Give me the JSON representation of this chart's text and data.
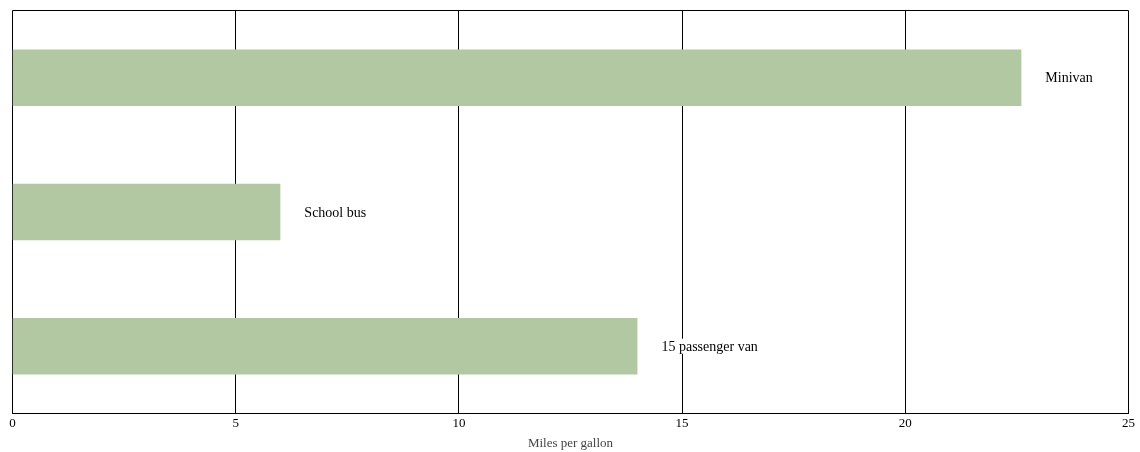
{
  "chart_data": {
    "type": "bar",
    "orientation": "horizontal",
    "xlabel": "Miles per gallon",
    "categories": [
      "Minivan",
      "School bus",
      "15 passenger van"
    ],
    "values": [
      22.6,
      6,
      14
    ],
    "color": "#b2c8a2",
    "xlim": [
      0,
      25
    ],
    "xticks": [
      0,
      5,
      10,
      15,
      20,
      25
    ],
    "grid": "x",
    "tick_labels": "x"
  }
}
